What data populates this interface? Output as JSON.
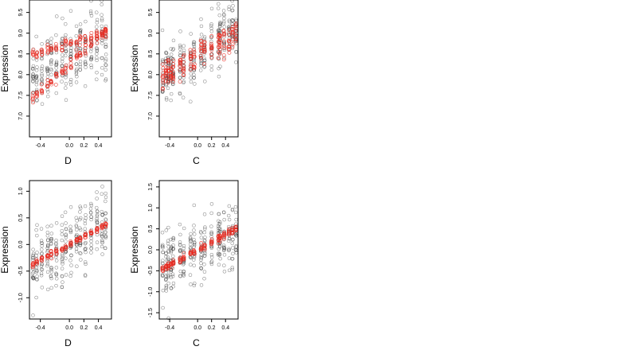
{
  "colors": {
    "observed": "#333333",
    "fitted": "#e8291f",
    "frame": "#000000"
  },
  "chart_data": [
    {
      "type": "scatter",
      "xlabel": "D",
      "ylabel": "Expression",
      "xlim": [
        -0.55,
        0.58
      ],
      "ylim": [
        6.5,
        9.8
      ],
      "xticks": [
        -0.4,
        0.0,
        0.2,
        0.4
      ],
      "xtick_labels": [
        "-0.4",
        "0.0",
        "0.2",
        "0.4"
      ],
      "yticks": [
        7.0,
        7.5,
        8.0,
        8.5,
        9.0,
        9.5
      ],
      "ytick_labels": [
        "7.0",
        "7.5",
        "8.0",
        "8.5",
        "9.0",
        "9.5"
      ],
      "x_groups": [
        -0.5,
        -0.45,
        -0.38,
        -0.3,
        -0.25,
        -0.18,
        -0.1,
        -0.05,
        0.02,
        0.1,
        0.15,
        0.22,
        0.3,
        0.38,
        0.45,
        0.5
      ],
      "series": [
        {
          "role": "observed",
          "trend": {
            "intercept": 8.45,
            "slope": 0.85
          },
          "spread": 0.42,
          "points_per_group": 18
        },
        {
          "role": "fitted",
          "lines": [
            {
              "intercept": 8.25,
              "slope": 1.6
            },
            {
              "intercept": 8.75,
              "slope": 0.5
            }
          ],
          "spread": 0.06,
          "points_per_group": 12
        }
      ]
    },
    {
      "type": "scatter",
      "xlabel": "C",
      "ylabel": "Expression",
      "xlim": [
        -0.55,
        0.58
      ],
      "ylim": [
        6.5,
        9.8
      ],
      "xticks": [
        -0.4,
        0.0,
        0.2,
        0.4
      ],
      "xtick_labels": [
        "-0.4",
        "0.0",
        "0.2",
        "0.4"
      ],
      "yticks": [
        7.0,
        7.5,
        8.0,
        8.5,
        9.0,
        9.5
      ],
      "ytick_labels": [
        "7.0",
        "7.5",
        "8.0",
        "8.5",
        "9.0",
        "9.5"
      ],
      "x_groups": [
        -0.5,
        -0.45,
        -0.42,
        -0.38,
        -0.35,
        -0.25,
        -0.2,
        -0.1,
        -0.05,
        0.05,
        0.1,
        0.2,
        0.3,
        0.32,
        0.38,
        0.45,
        0.5,
        0.55
      ],
      "series": [
        {
          "role": "observed",
          "trend": {
            "intercept": 8.45,
            "slope": 1.05
          },
          "spread": 0.35,
          "points_per_group": 18
        },
        {
          "role": "fitted",
          "lines": [
            {
              "intercept": 8.45,
              "slope": 0.95
            }
          ],
          "spread": 0.18,
          "points_per_group": 10
        }
      ]
    },
    {
      "type": "scatter",
      "xlabel": "D",
      "ylabel": "Expression",
      "xlim": [
        -0.55,
        0.58
      ],
      "ylim": [
        -1.4,
        1.2
      ],
      "xticks": [
        -0.4,
        0.0,
        0.2,
        0.4
      ],
      "xtick_labels": [
        "-0.4",
        "0.0",
        "0.2",
        "0.4"
      ],
      "yticks": [
        -1.0,
        -0.5,
        0.0,
        0.5,
        1.0
      ],
      "ytick_labels": [
        "-1.0",
        "-0.5",
        "0.0",
        "0.5",
        "1.0"
      ],
      "x_groups": [
        -0.5,
        -0.45,
        -0.38,
        -0.3,
        -0.25,
        -0.18,
        -0.1,
        -0.05,
        0.02,
        0.1,
        0.15,
        0.22,
        0.3,
        0.38,
        0.45,
        0.5
      ],
      "series": [
        {
          "role": "observed",
          "trend": {
            "intercept": 0.0,
            "slope": 0.85
          },
          "spread": 0.32,
          "points_per_group": 18
        },
        {
          "role": "fitted",
          "lines": [
            {
              "intercept": 0.0,
              "slope": 0.75
            }
          ],
          "spread": 0.025,
          "points_per_group": 8
        }
      ]
    },
    {
      "type": "scatter",
      "xlabel": "C",
      "ylabel": "Expression",
      "xlim": [
        -0.55,
        0.58
      ],
      "ylim": [
        -1.65,
        1.65
      ],
      "xticks": [
        -0.4,
        0.0,
        0.2,
        0.4
      ],
      "xtick_labels": [
        "-0.4",
        "0.0",
        "0.2",
        "0.4"
      ],
      "yticks": [
        -1.5,
        -1.0,
        -0.5,
        0.0,
        0.5,
        1.0,
        1.5
      ],
      "ytick_labels": [
        "-1.5",
        "-1.0",
        "-0.5",
        "0.0",
        "0.5",
        "1.0",
        "1.5"
      ],
      "x_groups": [
        -0.5,
        -0.45,
        -0.42,
        -0.38,
        -0.35,
        -0.25,
        -0.2,
        -0.1,
        -0.05,
        0.05,
        0.1,
        0.2,
        0.3,
        0.32,
        0.38,
        0.45,
        0.5,
        0.55
      ],
      "series": [
        {
          "role": "observed",
          "trend": {
            "intercept": 0.0,
            "slope": 0.85
          },
          "spread": 0.34,
          "points_per_group": 18
        },
        {
          "role": "fitted",
          "lines": [
            {
              "intercept": 0.0,
              "slope": 0.9
            }
          ],
          "spread": 0.035,
          "points_per_group": 8
        }
      ]
    }
  ]
}
